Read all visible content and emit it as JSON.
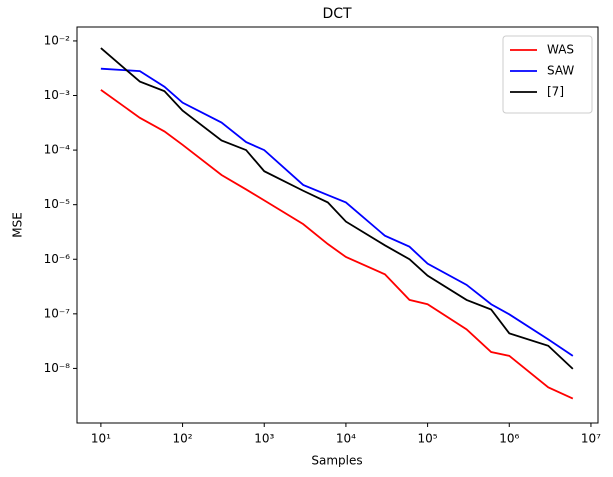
{
  "chart_data": {
    "type": "line",
    "title": "DCT",
    "x_label": "Samples",
    "y_label": "MSE",
    "x": [
      10,
      30,
      60,
      100,
      300,
      600,
      1000,
      3000,
      6000,
      10000,
      30000,
      60000,
      100000,
      300000,
      600000,
      1000000,
      3000000,
      6000000
    ],
    "series": [
      {
        "name": "WAS",
        "color": "#ff0000",
        "values": [
          0.00127,
          0.00039,
          0.00022,
          0.000125,
          3.5e-05,
          1.9e-05,
          1.2e-05,
          4.4e-06,
          1.9e-06,
          1.1e-06,
          5.3e-07,
          1.8e-07,
          1.5e-07,
          5.2e-08,
          2e-08,
          1.7e-08,
          4.5e-09,
          2.8e-09
        ]
      },
      {
        "name": "SAW",
        "color": "#0000ff",
        "values": [
          0.0031,
          0.0028,
          0.00145,
          0.00074,
          0.00032,
          0.00014,
          0.0001,
          2.3e-05,
          1.5e-05,
          1.1e-05,
          2.7e-06,
          1.7e-06,
          8.3e-07,
          3.4e-07,
          1.5e-07,
          9.8e-08,
          3.4e-08,
          1.7e-08
        ]
      },
      {
        "name": "[7]",
        "color": "#000000",
        "values": [
          0.0074,
          0.0018,
          0.0012,
          0.00053,
          0.00015,
          0.0001,
          4.1e-05,
          1.8e-05,
          1.1e-05,
          4.9e-06,
          1.8e-06,
          1e-06,
          5e-07,
          1.8e-07,
          1.2e-07,
          4.4e-08,
          2.6e-08,
          9.8e-09
        ]
      }
    ],
    "x_scale": "log",
    "y_scale": "log",
    "xlim": [
      5.1,
      12200000
    ],
    "ylim": [
      1e-09,
      0.018
    ],
    "xticks": [
      {
        "value": 10,
        "label": "10¹"
      },
      {
        "value": 100,
        "label": "10²"
      },
      {
        "value": 1000,
        "label": "10³"
      },
      {
        "value": 10000,
        "label": "10⁴"
      },
      {
        "value": 100000,
        "label": "10⁵"
      },
      {
        "value": 1000000,
        "label": "10⁶"
      },
      {
        "value": 10000000,
        "label": "10⁷"
      }
    ],
    "yticks": [
      {
        "value": 1e-08,
        "label": "10⁻⁸"
      },
      {
        "value": 1e-07,
        "label": "10⁻⁷"
      },
      {
        "value": 1e-06,
        "label": "10⁻⁶"
      },
      {
        "value": 1e-05,
        "label": "10⁻⁵"
      },
      {
        "value": 0.0001,
        "label": "10⁻⁴"
      },
      {
        "value": 0.001,
        "label": "10⁻³"
      },
      {
        "value": 0.01,
        "label": "10⁻²"
      }
    ],
    "legend_position": "upper right",
    "grid": false
  }
}
